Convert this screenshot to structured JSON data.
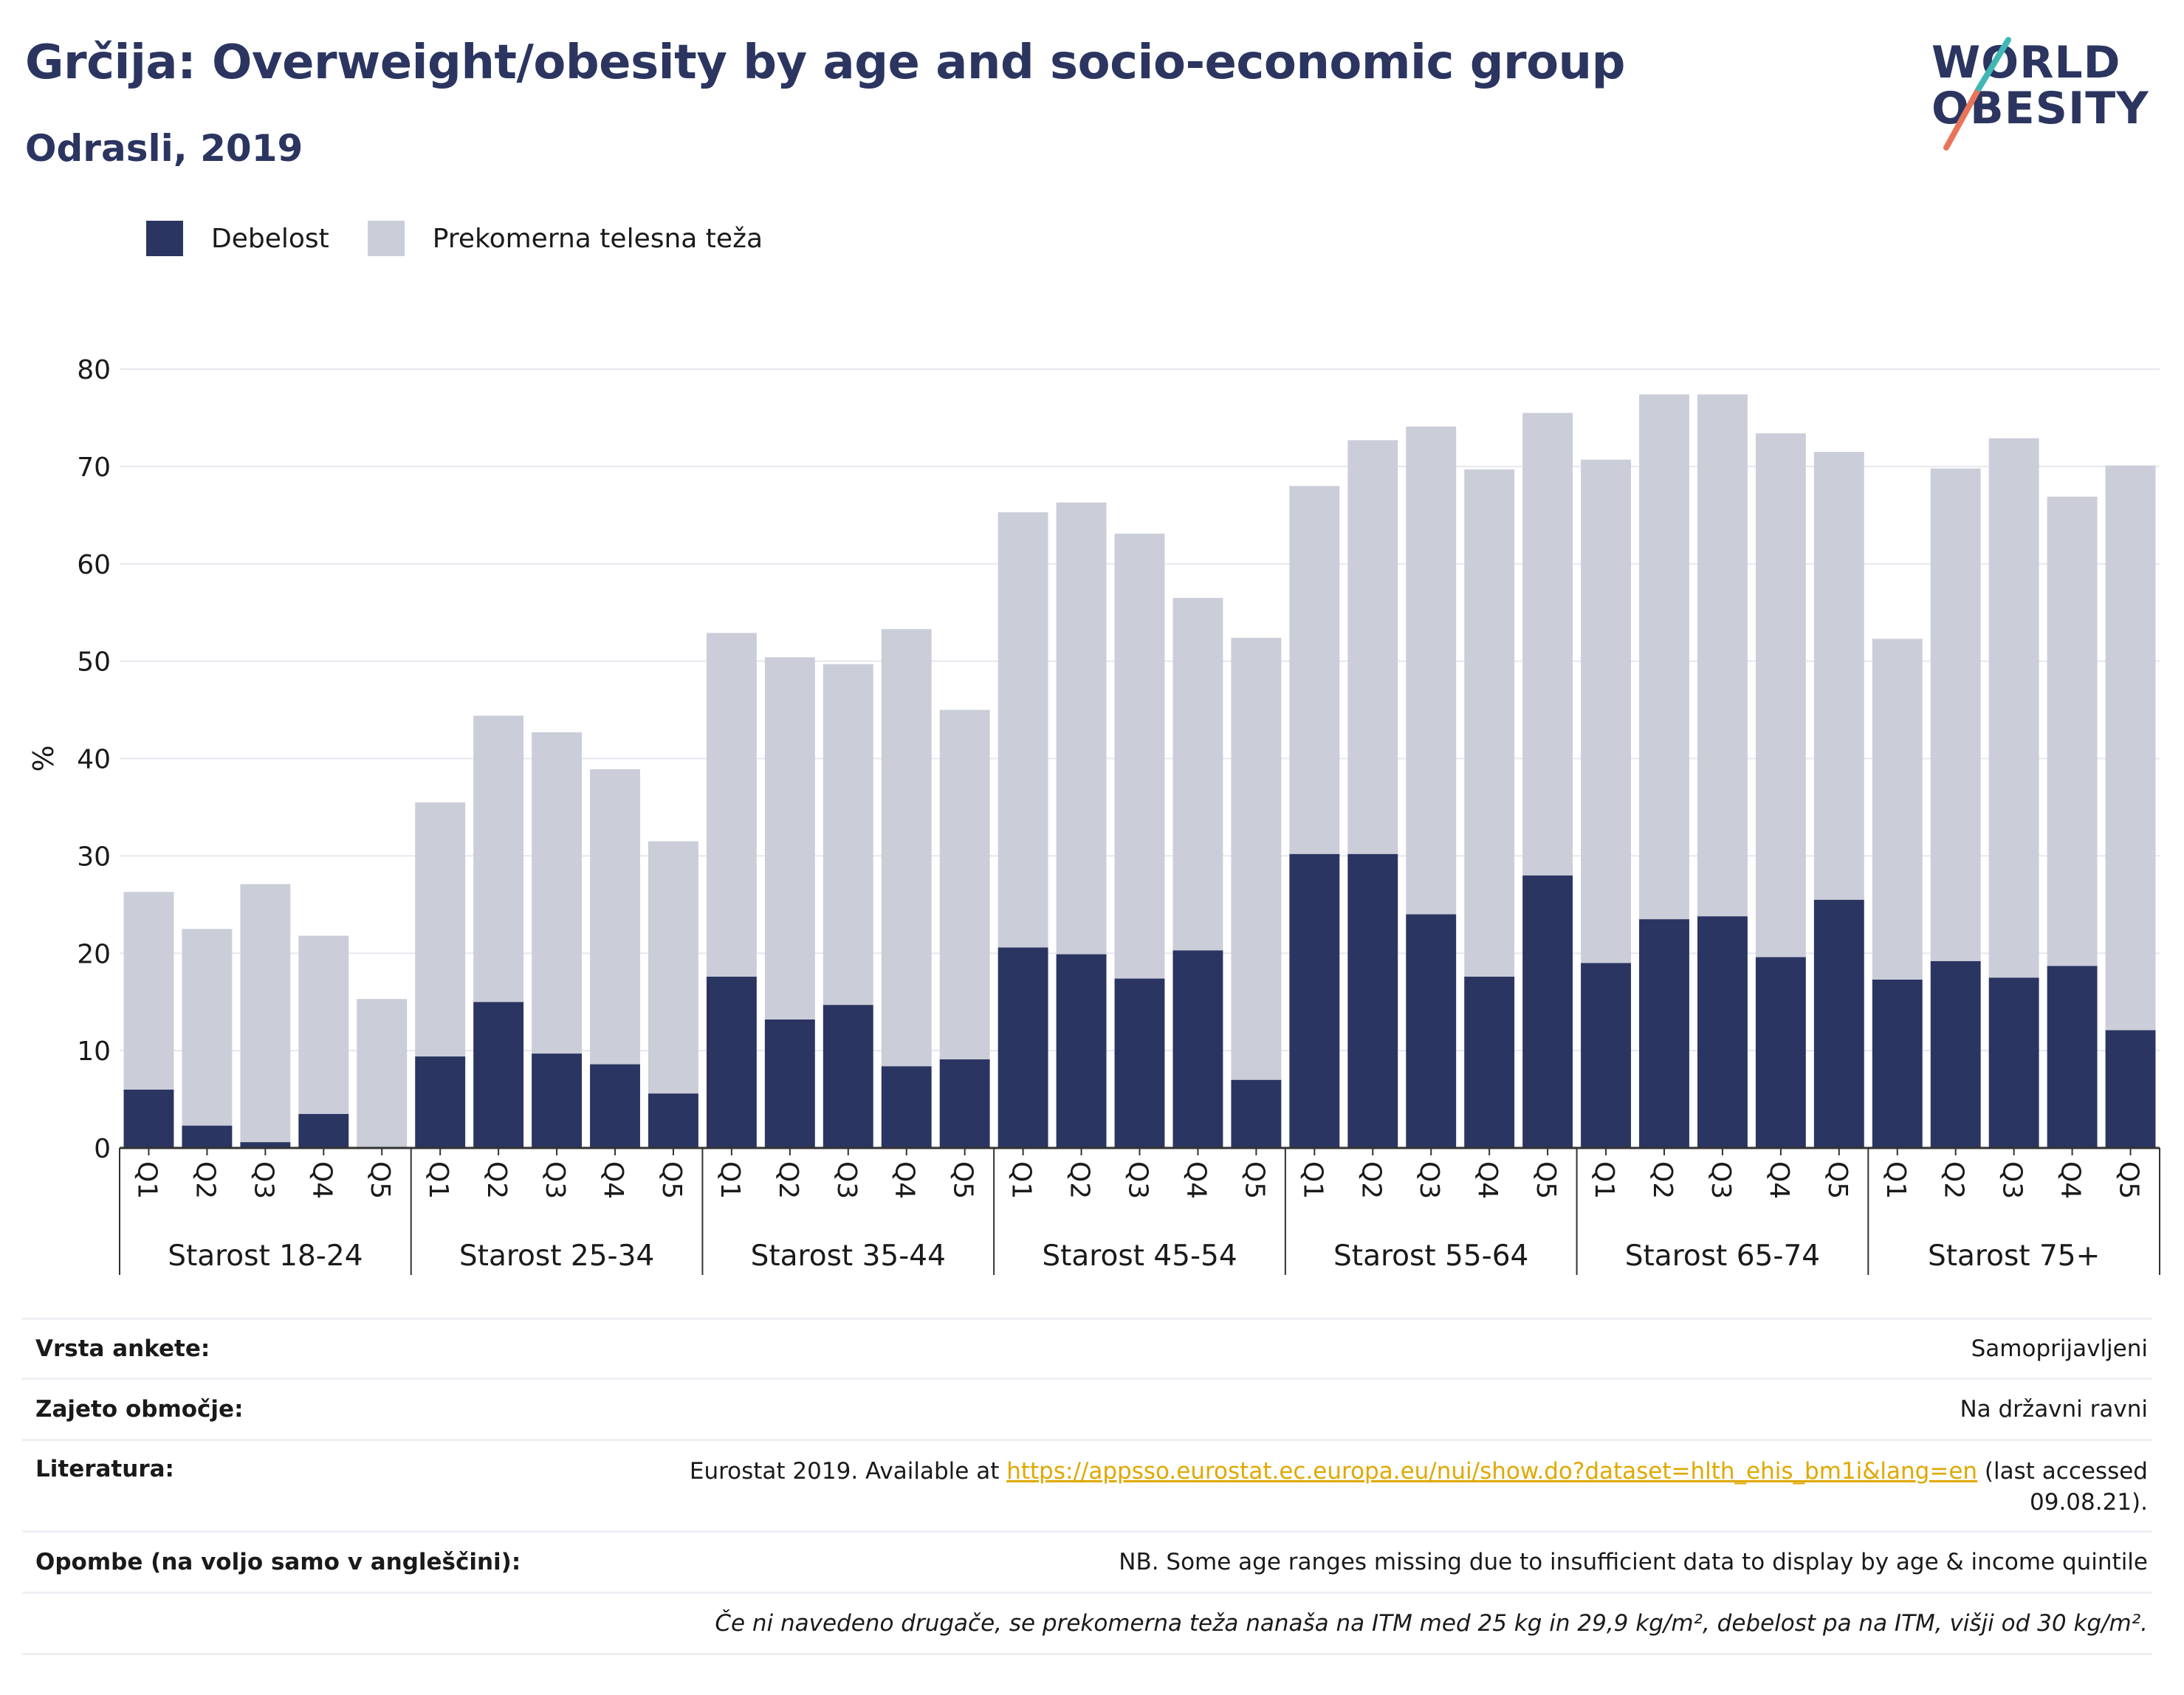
{
  "title": "Grčija: Overweight/obesity by age and socio-economic group",
  "subtitle": "Odrasli, 2019",
  "logo": {
    "line1": "WORLD",
    "line2": "OBESITY"
  },
  "legend": [
    {
      "label": "Debelost",
      "color": "#2b3562"
    },
    {
      "label": "Prekomerna telesna teža",
      "color": "#cbcdd9"
    }
  ],
  "chart_data": {
    "type": "bar",
    "stacked": true,
    "ylabel": "%",
    "ylim": [
      0,
      80
    ],
    "yticks": [
      0,
      10,
      20,
      30,
      40,
      50,
      60,
      70,
      80
    ],
    "grid": true,
    "legend_position": "top-left",
    "groups": [
      "Starost 18-24",
      "Starost 25-34",
      "Starost 35-44",
      "Starost 45-54",
      "Starost 55-64",
      "Starost 65-74",
      "Starost 75+"
    ],
    "categories": [
      "Q1",
      "Q2",
      "Q3",
      "Q4",
      "Q5"
    ],
    "series": [
      {
        "name": "Debelost",
        "color": "#2b3562",
        "values": [
          [
            6.0,
            2.3,
            0.6,
            3.5,
            0.0
          ],
          [
            9.4,
            15.0,
            9.7,
            8.6,
            5.6
          ],
          [
            17.6,
            13.2,
            14.7,
            8.4,
            9.1
          ],
          [
            20.6,
            19.9,
            17.4,
            20.3,
            7.0
          ],
          [
            30.2,
            30.2,
            24.0,
            17.6,
            28.0
          ],
          [
            19.0,
            23.5,
            23.8,
            19.6,
            25.5
          ],
          [
            17.3,
            19.2,
            17.5,
            18.7,
            12.1
          ]
        ]
      },
      {
        "name": "Prekomerna telesna teža",
        "color": "#cbcdd9",
        "values": [
          [
            20.3,
            20.2,
            26.5,
            18.3,
            15.3
          ],
          [
            26.1,
            29.4,
            33.0,
            30.3,
            25.9
          ],
          [
            35.3,
            37.2,
            35.0,
            44.9,
            35.9
          ],
          [
            44.7,
            46.4,
            45.7,
            36.2,
            45.4
          ],
          [
            37.8,
            42.5,
            50.1,
            52.1,
            47.5
          ],
          [
            51.7,
            53.9,
            53.6,
            53.8,
            46.0
          ],
          [
            35.0,
            50.6,
            55.4,
            48.2,
            58.0
          ]
        ]
      }
    ]
  },
  "footer": {
    "survey_key": "Vrsta ankete:",
    "survey_val": "Samoprijavljeni",
    "area_key": "Zajeto območje:",
    "area_val": "Na državni ravni",
    "lit_key": "Literatura:",
    "lit_pre": "Eurostat 2019. Available at ",
    "lit_link": "https://appsso.eurostat.ec.europa.eu/nui/show.do?dataset=hlth_ehis_bm1i&lang=en",
    "lit_post": " (last accessed",
    "lit_date": "09.08.21).",
    "notes_key": "Opombe (na voljo samo v angleščini):",
    "notes_val": "NB. Some age ranges missing due to insufficient data to display by age & income quintile",
    "definition": "Če ni navedeno drugače, se prekomerna teža nanaša na ITM med 25 kg in 29,9 kg/m², debelost pa na ITM, višji od 30 kg/m²."
  }
}
